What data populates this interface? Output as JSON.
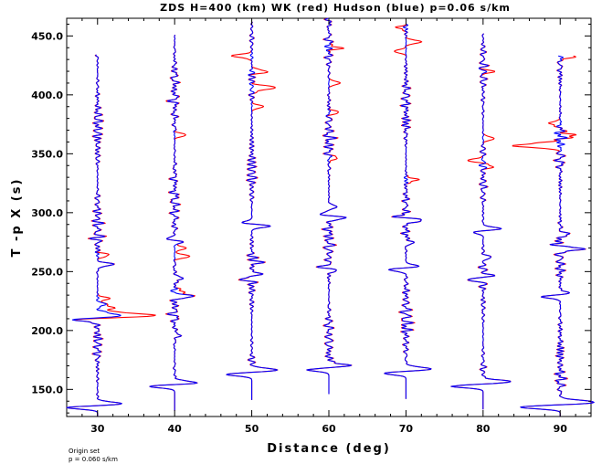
{
  "chart_data": {
    "type": "line",
    "title": "ZDS H=400 (km) WK (red) Hudson (blue) p=0.06 s/km",
    "xlabel": "Distance (deg)",
    "ylabel": "T -p X (s)",
    "xlim": [
      26,
      94
    ],
    "ylim": [
      127,
      465
    ],
    "x_ticks": [
      30,
      40,
      50,
      60,
      70,
      80,
      90
    ],
    "x_tick_labels": [
      "30",
      "40",
      "50",
      "60",
      "70",
      "80",
      "90"
    ],
    "y_ticks": [
      150,
      200,
      250,
      300,
      350,
      400,
      450
    ],
    "y_tick_labels": [
      "150.0",
      "200.0",
      "250.0",
      "300.0",
      "350.0",
      "400.0",
      "450.0"
    ],
    "grid": false,
    "legend": "none",
    "series": [
      {
        "color": "#ff0000",
        "label": "WK (red)"
      },
      {
        "color": "#0000ff",
        "label": "Hudson (blue)"
      }
    ],
    "traces": [
      {
        "distance": 30,
        "t_start": 127,
        "t_end": 434,
        "t_first": 135,
        "pulses": [
          [
            135,
            -6.0,
            2.0
          ],
          [
            137,
            4.5,
            2.5
          ],
          [
            209,
            -3,
            2
          ],
          [
            213,
            3,
            2.5
          ],
          [
            256,
            2,
            2
          ],
          [
            222,
            1,
            2
          ]
        ],
        "red_pulses": [
          [
            213,
            4.5,
            2.5
          ],
          [
            219,
            2,
            2
          ],
          [
            227,
            1.5,
            2
          ],
          [
            264,
            1.5,
            2
          ]
        ]
      },
      {
        "distance": 40,
        "t_start": 132,
        "t_end": 451,
        "t_first": 153,
        "pulses": [
          [
            153,
            -5.0,
            2.0
          ],
          [
            155,
            4.0,
            2.5
          ],
          [
            229,
            2,
            2
          ],
          [
            277,
            -2.5,
            2
          ],
          [
            276,
            2.5,
            2
          ],
          [
            244,
            1.2,
            2
          ],
          [
            196,
            0.8,
            2
          ]
        ],
        "red_pulses": [
          [
            263,
            2,
            2
          ],
          [
            270,
            1.5,
            2
          ],
          [
            366,
            1.5,
            2
          ],
          [
            233,
            1.5,
            2
          ]
        ]
      },
      {
        "distance": 50,
        "t_start": 141,
        "t_end": 462,
        "t_first": 163,
        "pulses": [
          [
            163,
            -4.0,
            2.0
          ],
          [
            166,
            3.5,
            2.5
          ],
          [
            289,
            3,
            2
          ],
          [
            291,
            -2,
            2
          ],
          [
            245,
            -2,
            2
          ],
          [
            247,
            2,
            2
          ],
          [
            258,
            1,
            2
          ]
        ],
        "red_pulses": [
          [
            406,
            3,
            2.5
          ],
          [
            433,
            -2.5,
            2
          ],
          [
            390,
            1.5,
            2
          ],
          [
            420,
            2,
            2
          ]
        ]
      },
      {
        "distance": 60,
        "t_start": 146,
        "t_end": 465,
        "t_first": 167,
        "pulses": [
          [
            167,
            -3.5,
            2.0
          ],
          [
            170,
            3.0,
            2.5
          ],
          [
            296,
            3,
            2
          ],
          [
            298,
            -2,
            2
          ],
          [
            253,
            -2.5,
            2
          ],
          [
            252,
            2.5,
            2
          ],
          [
            305,
            1,
            2
          ]
        ],
        "red_pulses": [
          [
            410,
            1.5,
            2
          ],
          [
            385,
            1.2,
            2
          ],
          [
            440,
            1.5,
            2
          ],
          [
            346,
            1,
            2
          ]
        ]
      },
      {
        "distance": 70,
        "t_start": 142,
        "t_end": 460,
        "t_first": 164,
        "pulses": [
          [
            164,
            -3.5,
            2.0
          ],
          [
            167,
            3.5,
            2.5
          ],
          [
            294,
            3,
            2
          ],
          [
            296,
            -2,
            2
          ],
          [
            252,
            -3,
            2
          ],
          [
            254,
            2.5,
            2
          ],
          [
            275,
            1,
            2
          ]
        ],
        "red_pulses": [
          [
            445,
            2,
            2
          ],
          [
            437,
            -1.5,
            2
          ],
          [
            328,
            1.5,
            2
          ],
          [
            457,
            -1,
            2
          ]
        ]
      },
      {
        "distance": 80,
        "t_start": 133,
        "t_end": 452,
        "t_first": 153,
        "pulses": [
          [
            153,
            -5.0,
            2.0
          ],
          [
            156,
            4.0,
            2.5
          ],
          [
            286,
            3,
            2
          ],
          [
            284,
            -2,
            2
          ],
          [
            244,
            -2.5,
            2
          ],
          [
            246,
            2,
            2
          ],
          [
            262,
            1,
            2
          ]
        ],
        "red_pulses": [
          [
            344,
            -2,
            2
          ],
          [
            363,
            1.5,
            2
          ],
          [
            420,
            1,
            2
          ],
          [
            340,
            1.5,
            2
          ]
        ]
      },
      {
        "distance": 90,
        "t_start": 127,
        "t_end": 433,
        "t_first": 135,
        "pulses": [
          [
            135,
            -5.5,
            2.0
          ],
          [
            139,
            4.5,
            2.5
          ],
          [
            270,
            4,
            2
          ],
          [
            272,
            -2,
            2
          ],
          [
            229,
            -3,
            2
          ],
          [
            231,
            2,
            2
          ],
          [
            282,
            1,
            2
          ]
        ],
        "red_pulses": [
          [
            357,
            -6,
            2.5
          ],
          [
            366,
            2,
            2
          ],
          [
            376,
            -1.5,
            2
          ],
          [
            433,
            2,
            2
          ]
        ]
      }
    ],
    "annotation": [
      "Origin set",
      "p = 0.060 s/km"
    ]
  }
}
